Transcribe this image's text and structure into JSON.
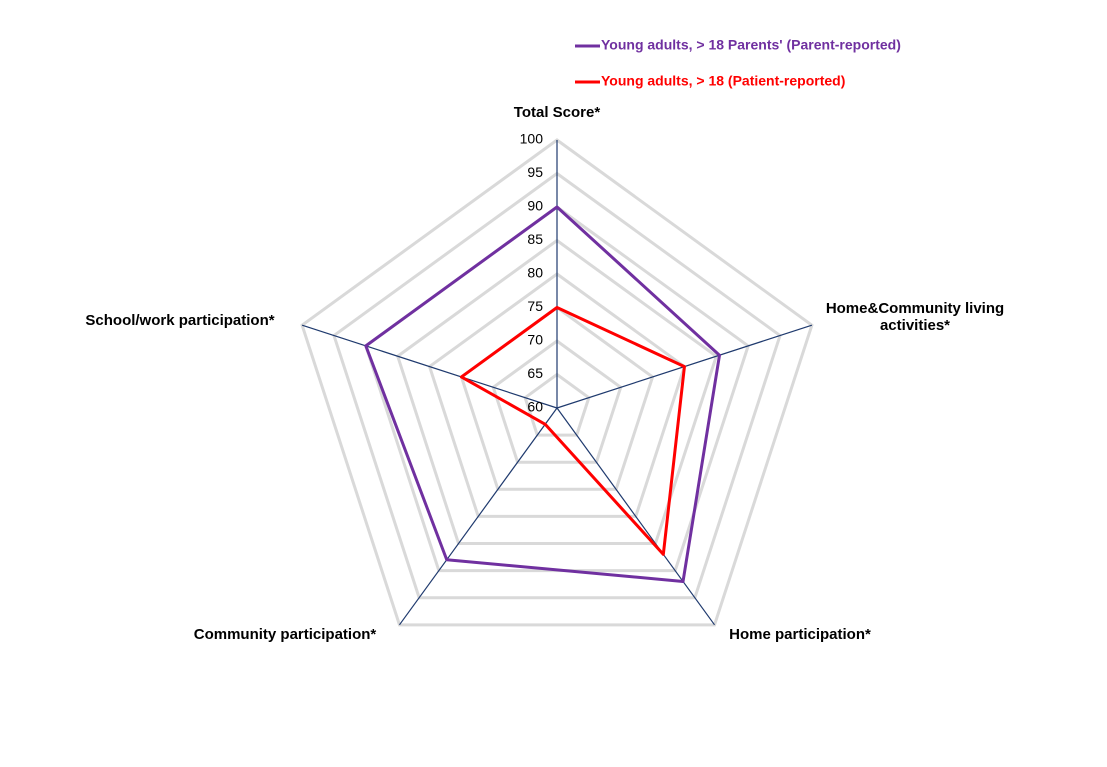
{
  "chart_data": {
    "type": "radar",
    "categories": [
      "Total Score*",
      "Home&Community living activities*",
      "Home participation*",
      "Community participation*",
      "School/work participation*"
    ],
    "series": [
      {
        "name": "Young adults, > 18 Parents' (Parent-reported)",
        "color": "#7030a0",
        "values": [
          90,
          85.5,
          92,
          88,
          90
        ]
      },
      {
        "name": "Young adults, > 18 (Patient-reported)",
        "color": "#ff0000",
        "values": [
          75,
          80,
          87,
          63,
          75
        ]
      }
    ],
    "ylim": [
      60,
      100
    ],
    "yticks": [
      60,
      65,
      70,
      75,
      80,
      85,
      90,
      95,
      100
    ],
    "grid": true,
    "legend": "top-right"
  }
}
